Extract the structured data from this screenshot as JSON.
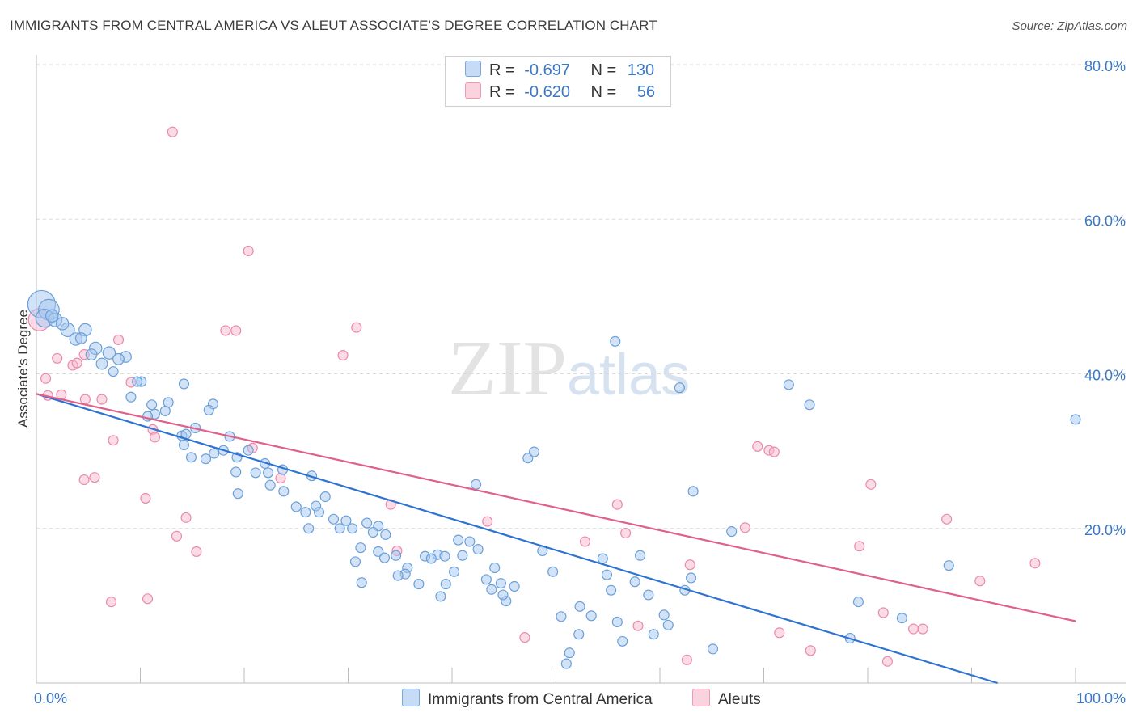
{
  "header": {
    "title": "IMMIGRANTS FROM CENTRAL AMERICA VS ALEUT ASSOCIATE'S DEGREE CORRELATION CHART",
    "source": "Source: ZipAtlas.com"
  },
  "watermark": {
    "zip": "ZIP",
    "atlas": "atlas"
  },
  "legend": {
    "rows": [
      {
        "r_label": "R =",
        "r_value": "-0.697",
        "n_label": "N =",
        "n_value": "130",
        "color": "#a8c8f0"
      },
      {
        "r_label": "R =",
        "r_value": "-0.620",
        "n_label": "N =",
        "n_value": "56",
        "color": "#f7b8cc"
      }
    ]
  },
  "bottom_legend": [
    {
      "label": "Immigrants from Central America",
      "color": "#a8c8f0"
    },
    {
      "label": "Aleuts",
      "color": "#f7b8cc"
    }
  ],
  "colors": {
    "blue_fill": "#a8c8f0",
    "blue_stroke": "#6a9fd8",
    "blue_line": "#2e73d2",
    "pink_fill": "#f7b8cc",
    "pink_stroke": "#ea8aaa",
    "pink_line": "#e0608a",
    "grid": "#d9d9d9",
    "tick_text": "#3b78c4"
  },
  "chart_data": {
    "type": "scatter",
    "title": "IMMIGRANTS FROM CENTRAL AMERICA VS ALEUT ASSOCIATE'S DEGREE CORRELATION CHART",
    "xlabel": "",
    "ylabel": "Associate's Degree",
    "xlim": [
      0,
      100
    ],
    "ylim": [
      0,
      80
    ],
    "x_tick_labels": [
      "0.0%",
      "100.0%"
    ],
    "y_ticks": [
      20,
      40,
      60,
      80
    ],
    "y_tick_labels": [
      "20.0%",
      "40.0%",
      "60.0%",
      "80.0%"
    ],
    "grid": "horizontal dashed",
    "legend_position": "top-center",
    "series": [
      {
        "name": "Immigrants from Central America",
        "color": "#a8c8f0",
        "trend": {
          "x": [
            0,
            92.5
          ],
          "y": [
            37.4,
            0
          ]
        },
        "points": [
          [
            0.5,
            49.0,
            2.0
          ],
          [
            1.2,
            48.3,
            1.5
          ],
          [
            0.8,
            47.2,
            1.3
          ],
          [
            1.8,
            47.0,
            1.0
          ],
          [
            3.0,
            45.7,
            1.0
          ],
          [
            4.7,
            45.7,
            0.9
          ],
          [
            3.8,
            44.5,
            0.9
          ],
          [
            4.3,
            44.6,
            0.8
          ],
          [
            5.7,
            43.3,
            0.9
          ],
          [
            5.3,
            42.5,
            0.8
          ],
          [
            7.0,
            42.7,
            0.9
          ],
          [
            8.6,
            42.2,
            0.8
          ],
          [
            7.9,
            41.9,
            0.8
          ],
          [
            6.3,
            41.3,
            0.8
          ],
          [
            7.4,
            40.3,
            0.7
          ],
          [
            10.1,
            39.0,
            0.7
          ],
          [
            9.7,
            39.0,
            0.7
          ],
          [
            14.2,
            38.7,
            0.7
          ],
          [
            9.1,
            37.0,
            0.7
          ],
          [
            11.1,
            36.0,
            0.7
          ],
          [
            12.7,
            36.3,
            0.7
          ],
          [
            17.0,
            36.1,
            0.7
          ],
          [
            12.4,
            35.2,
            0.7
          ],
          [
            16.6,
            35.3,
            0.7
          ],
          [
            11.4,
            34.8,
            0.7
          ],
          [
            10.7,
            34.5,
            0.7
          ],
          [
            15.3,
            33.0,
            0.7
          ],
          [
            14.0,
            32.0,
            0.7
          ],
          [
            14.4,
            32.2,
            0.7
          ],
          [
            18.6,
            31.9,
            0.7
          ],
          [
            18.0,
            30.1,
            0.7
          ],
          [
            17.1,
            29.7,
            0.7
          ],
          [
            14.2,
            30.8,
            0.7
          ],
          [
            20.4,
            30.1,
            0.7
          ],
          [
            14.9,
            29.2,
            0.7
          ],
          [
            16.3,
            29.0,
            0.7
          ],
          [
            19.3,
            29.2,
            0.7
          ],
          [
            22.0,
            28.4,
            0.7
          ],
          [
            21.1,
            27.2,
            0.7
          ],
          [
            22.3,
            27.2,
            0.7
          ],
          [
            23.7,
            27.6,
            0.7
          ],
          [
            19.2,
            27.3,
            0.7
          ],
          [
            22.5,
            25.6,
            0.7
          ],
          [
            26.5,
            26.8,
            0.7
          ],
          [
            19.4,
            24.5,
            0.7
          ],
          [
            23.8,
            24.8,
            0.7
          ],
          [
            27.8,
            24.1,
            0.7
          ],
          [
            25.0,
            22.8,
            0.7
          ],
          [
            26.9,
            22.9,
            0.7
          ],
          [
            25.9,
            22.1,
            0.7
          ],
          [
            27.2,
            22.1,
            0.7
          ],
          [
            28.6,
            21.2,
            0.7
          ],
          [
            26.2,
            20.0,
            0.7
          ],
          [
            29.2,
            20.0,
            0.7
          ],
          [
            29.8,
            21.0,
            0.7
          ],
          [
            30.4,
            20.0,
            0.7
          ],
          [
            31.8,
            20.7,
            0.7
          ],
          [
            32.9,
            20.3,
            0.7
          ],
          [
            33.6,
            19.2,
            0.7
          ],
          [
            32.4,
            19.5,
            0.7
          ],
          [
            31.2,
            17.5,
            0.7
          ],
          [
            32.9,
            17.0,
            0.7
          ],
          [
            34.6,
            16.5,
            0.7
          ],
          [
            33.5,
            16.2,
            0.7
          ],
          [
            30.7,
            15.7,
            0.7
          ],
          [
            35.7,
            14.9,
            0.7
          ],
          [
            35.5,
            14.1,
            0.7
          ],
          [
            34.8,
            13.9,
            0.7
          ],
          [
            31.3,
            13.0,
            0.7
          ],
          [
            36.8,
            12.8,
            0.7
          ],
          [
            37.4,
            16.4,
            0.7
          ],
          [
            38.6,
            16.6,
            0.7
          ],
          [
            39.3,
            16.4,
            0.7
          ],
          [
            38.0,
            16.1,
            0.7
          ],
          [
            40.2,
            14.4,
            0.7
          ],
          [
            39.4,
            12.8,
            0.7
          ],
          [
            40.6,
            18.5,
            0.7
          ],
          [
            42.5,
            17.3,
            0.7
          ],
          [
            41.7,
            18.3,
            0.7
          ],
          [
            41.0,
            16.5,
            0.7
          ],
          [
            43.3,
            13.4,
            0.7
          ],
          [
            44.1,
            14.9,
            0.7
          ],
          [
            43.8,
            12.1,
            0.7
          ],
          [
            44.7,
            12.9,
            0.7
          ],
          [
            46.0,
            12.5,
            0.7
          ],
          [
            45.2,
            10.6,
            0.7
          ],
          [
            44.9,
            11.4,
            0.7
          ],
          [
            38.9,
            11.2,
            0.7
          ],
          [
            42.3,
            25.7,
            0.7
          ],
          [
            47.3,
            29.1,
            0.7
          ],
          [
            47.9,
            29.9,
            0.7
          ],
          [
            48.7,
            17.1,
            0.7
          ],
          [
            49.7,
            14.4,
            0.7
          ],
          [
            50.5,
            8.6,
            0.7
          ],
          [
            51.3,
            3.9,
            0.7
          ],
          [
            51.0,
            2.5,
            0.7
          ],
          [
            52.3,
            9.9,
            0.7
          ],
          [
            53.4,
            8.7,
            0.7
          ],
          [
            52.2,
            6.3,
            0.7
          ],
          [
            54.5,
            16.1,
            0.7
          ],
          [
            54.9,
            14.0,
            0.7
          ],
          [
            55.3,
            12.0,
            0.7
          ],
          [
            55.9,
            7.9,
            0.7
          ],
          [
            56.4,
            5.4,
            0.7
          ],
          [
            57.6,
            13.1,
            0.7
          ],
          [
            58.1,
            16.5,
            0.7
          ],
          [
            58.9,
            11.4,
            0.7
          ],
          [
            59.4,
            6.3,
            0.7
          ],
          [
            60.4,
            8.8,
            0.7
          ],
          [
            60.8,
            7.5,
            0.7
          ],
          [
            55.7,
            44.2,
            0.7
          ],
          [
            61.9,
            38.2,
            0.7
          ],
          [
            62.4,
            12.0,
            0.7
          ],
          [
            63.0,
            13.6,
            0.7
          ],
          [
            63.2,
            24.8,
            0.7
          ],
          [
            65.1,
            4.4,
            0.7
          ],
          [
            66.9,
            19.6,
            0.7
          ],
          [
            72.4,
            38.6,
            0.7
          ],
          [
            74.4,
            36.0,
            0.7
          ],
          [
            78.3,
            5.8,
            0.7
          ],
          [
            79.1,
            10.5,
            0.7
          ],
          [
            83.3,
            8.4,
            0.7
          ],
          [
            87.8,
            15.2,
            0.7
          ],
          [
            100.0,
            34.1,
            0.7
          ],
          [
            1.5,
            47.5,
            0.9
          ],
          [
            2.5,
            46.5,
            0.9
          ]
        ]
      },
      {
        "name": "Aleuts",
        "color": "#f7b8cc",
        "trend": {
          "x": [
            0,
            100
          ],
          "y": [
            37.4,
            8.0
          ]
        },
        "points": [
          [
            0.3,
            47.0,
            1.6
          ],
          [
            0.9,
            39.4,
            0.7
          ],
          [
            1.1,
            37.2,
            0.7
          ],
          [
            2.0,
            42.0,
            0.7
          ],
          [
            2.4,
            37.3,
            0.7
          ],
          [
            3.5,
            41.1,
            0.7
          ],
          [
            3.9,
            41.4,
            0.7
          ],
          [
            4.6,
            42.5,
            0.7
          ],
          [
            4.6,
            26.3,
            0.7
          ],
          [
            4.7,
            36.7,
            0.7
          ],
          [
            5.6,
            26.6,
            0.7
          ],
          [
            6.3,
            36.7,
            0.7
          ],
          [
            7.2,
            10.5,
            0.7
          ],
          [
            7.4,
            31.4,
            0.7
          ],
          [
            7.9,
            44.4,
            0.7
          ],
          [
            9.1,
            38.9,
            0.7
          ],
          [
            10.5,
            23.9,
            0.7
          ],
          [
            10.7,
            10.9,
            0.7
          ],
          [
            11.2,
            32.8,
            0.7
          ],
          [
            11.4,
            31.8,
            0.7
          ],
          [
            13.1,
            71.3,
            0.7
          ],
          [
            13.5,
            19.0,
            0.7
          ],
          [
            14.4,
            21.4,
            0.7
          ],
          [
            15.4,
            17.0,
            0.7
          ],
          [
            18.2,
            45.6,
            0.7
          ],
          [
            19.2,
            45.6,
            0.7
          ],
          [
            20.4,
            55.9,
            0.7
          ],
          [
            20.8,
            30.4,
            0.7
          ],
          [
            23.5,
            26.5,
            0.7
          ],
          [
            29.5,
            42.4,
            0.7
          ],
          [
            30.8,
            46.0,
            0.7
          ],
          [
            34.1,
            23.1,
            0.7
          ],
          [
            34.7,
            17.1,
            0.7
          ],
          [
            43.4,
            20.9,
            0.7
          ],
          [
            47.0,
            5.9,
            0.7
          ],
          [
            52.8,
            18.3,
            0.7
          ],
          [
            55.9,
            23.1,
            0.7
          ],
          [
            56.7,
            19.4,
            0.7
          ],
          [
            57.9,
            7.4,
            0.7
          ],
          [
            62.9,
            15.3,
            0.7
          ],
          [
            62.6,
            3.0,
            0.7
          ],
          [
            68.2,
            20.1,
            0.7
          ],
          [
            69.4,
            30.6,
            0.7
          ],
          [
            70.5,
            30.1,
            0.7
          ],
          [
            71.0,
            29.9,
            0.7
          ],
          [
            71.5,
            6.5,
            0.7
          ],
          [
            74.5,
            4.2,
            0.7
          ],
          [
            79.2,
            17.7,
            0.7
          ],
          [
            80.3,
            25.7,
            0.7
          ],
          [
            81.5,
            9.1,
            0.7
          ],
          [
            81.9,
            2.8,
            0.7
          ],
          [
            84.4,
            7.0,
            0.7
          ],
          [
            85.3,
            7.0,
            0.7
          ],
          [
            87.6,
            21.2,
            0.7
          ],
          [
            90.8,
            13.2,
            0.7
          ],
          [
            96.1,
            15.5,
            0.7
          ]
        ]
      }
    ]
  }
}
